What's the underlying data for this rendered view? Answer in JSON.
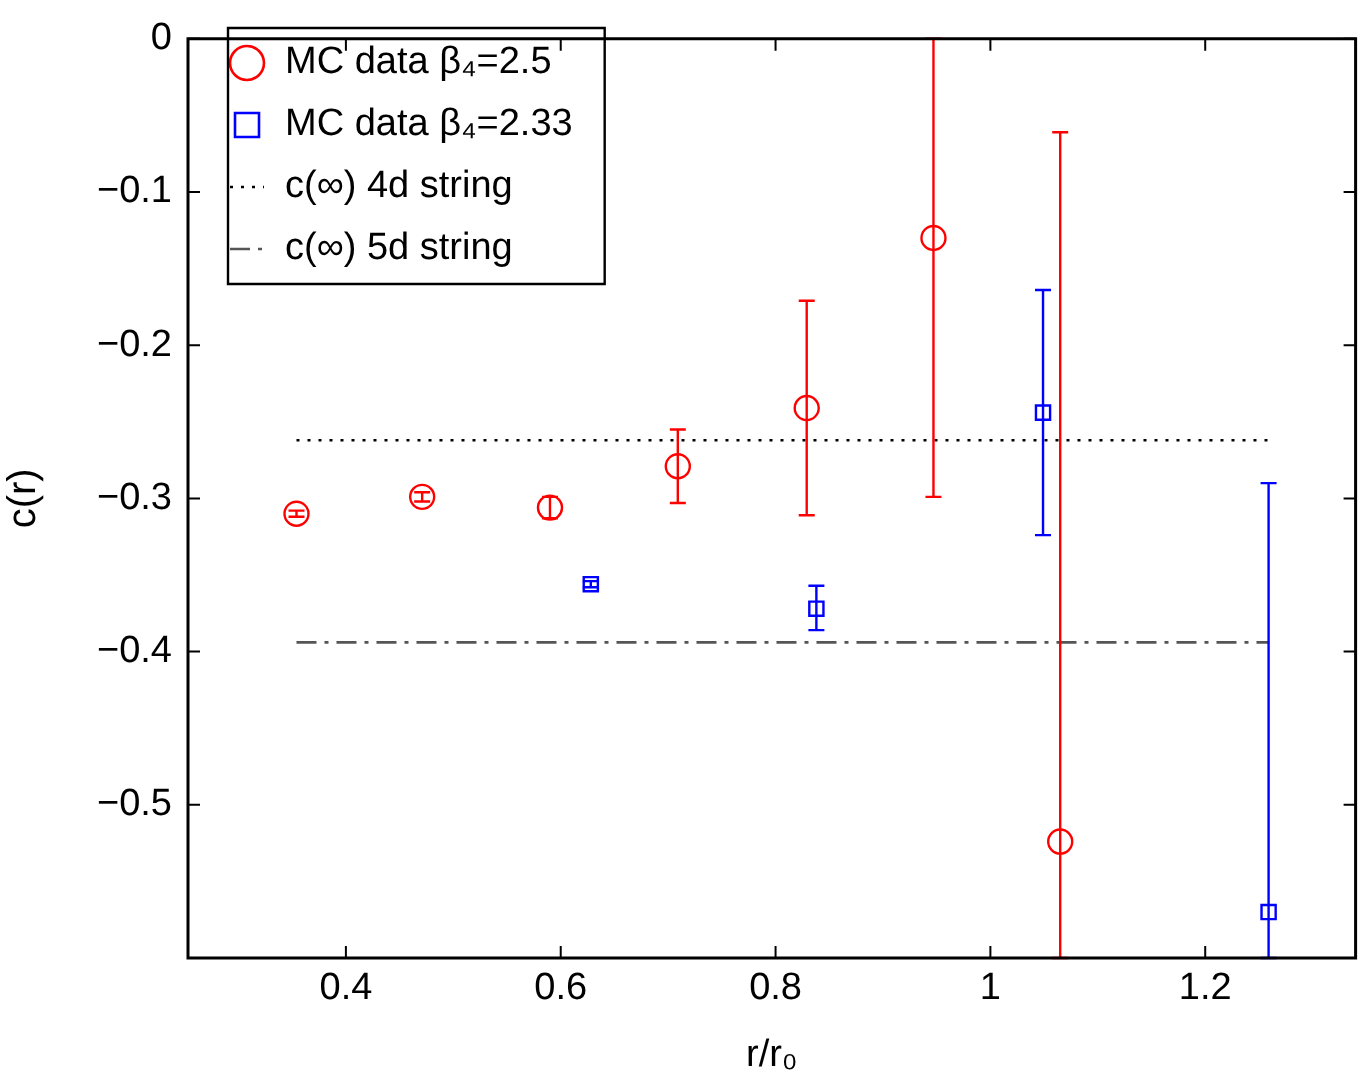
{
  "chart_data": {
    "type": "scatter",
    "xlabel": "r/r₀",
    "ylabel": "c(r)",
    "xlim": [
      0.253,
      1.34
    ],
    "ylim": [
      -0.6,
      0
    ],
    "xticks": [
      0.4,
      0.6,
      0.8,
      1,
      1.2
    ],
    "yticks": [
      {
        "value": -0.5,
        "label": "−0.5"
      },
      {
        "value": -0.4,
        "label": "−0.4"
      },
      {
        "value": -0.3,
        "label": "−0.3"
      },
      {
        "value": -0.2,
        "label": "−0.2"
      },
      {
        "value": -0.1,
        "label": "−0.1"
      },
      {
        "value": 0,
        "label": "0"
      }
    ],
    "grid": false,
    "legend": "top left",
    "series": [
      {
        "name": "MC data β₄=2.5",
        "marker": "circle",
        "color": "#ff0000",
        "x": [
          0.354,
          0.471,
          0.59,
          0.709,
          0.829,
          0.947,
          1.065
        ],
        "values": [
          -0.31,
          -0.299,
          -0.306,
          -0.279,
          -0.241,
          -0.13,
          -0.524
        ],
        "errors": [
          0.002,
          0.003,
          0.007,
          [
            -0.303,
            -0.255
          ],
          [
            -0.311,
            -0.171
          ],
          [
            -0.299,
            0
          ],
          [
            -0.6,
            -0.061
          ]
        ]
      },
      {
        "name": "MC data β₄=2.33",
        "marker": "square",
        "color": "#0000ff",
        "x": [
          0.628,
          0.838,
          1.049,
          1.259
        ],
        "values": [
          -0.356,
          -0.372,
          -0.244,
          -0.57
        ],
        "errors": [
          0.002,
          [
            -0.386,
            -0.357
          ],
          [
            -0.324,
            -0.164
          ],
          [
            -0.6,
            -0.29
          ]
        ]
      },
      {
        "name": "c(∞) 4d string",
        "type": "line",
        "line_style": "dotted",
        "color": "#000000",
        "x": [
          0.354,
          1.259
        ],
        "values": [
          -0.262,
          -0.262
        ]
      },
      {
        "name": "c(∞) 5d string",
        "type": "line",
        "line_style": "dashdot",
        "color": "#555555",
        "x": [
          0.354,
          1.259
        ],
        "values": [
          -0.394,
          -0.394
        ]
      }
    ]
  }
}
